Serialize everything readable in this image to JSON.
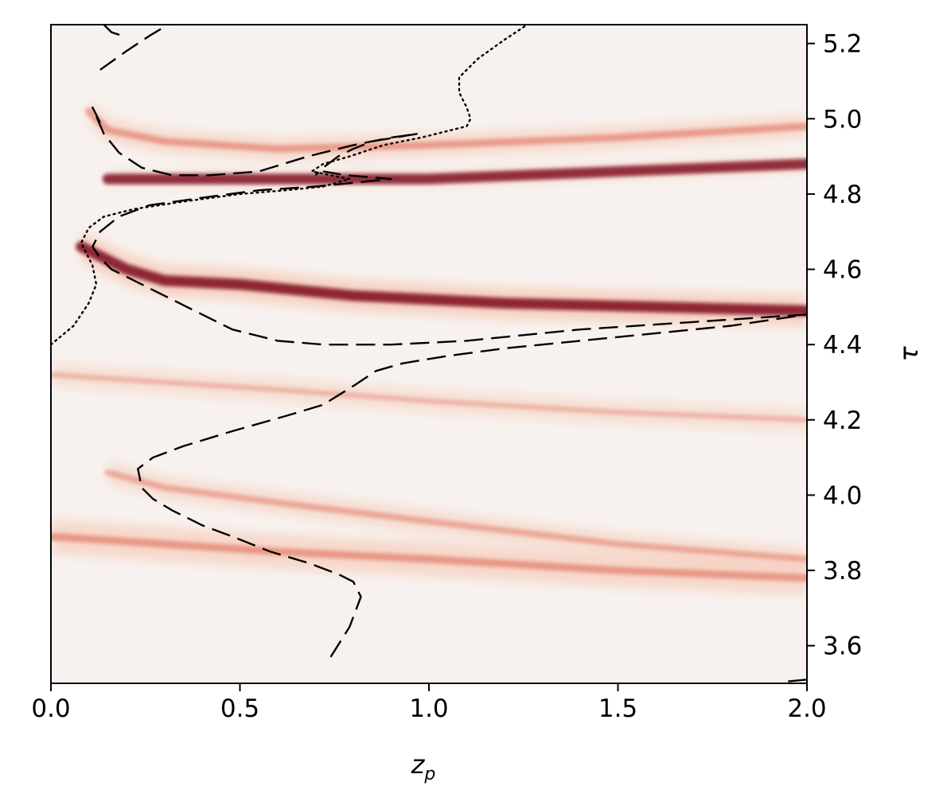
{
  "chart_data": {
    "type": "heatmap",
    "title": "",
    "xlabel": "z",
    "xlabel_subscript": "p",
    "ylabel": "τ",
    "xlim": [
      0.0,
      2.0
    ],
    "ylim": [
      3.5,
      5.25
    ],
    "y_axis_side": "right",
    "grid": false,
    "colormap": "Reds",
    "colors": {
      "background": "#f7f2ef",
      "band_light": "#f6c3ad",
      "band_mid": "#e0725f",
      "band_dark": "#7f0f22",
      "curve": "#000000"
    },
    "x_ticks": [
      {
        "value": 0.0,
        "label": "0.0"
      },
      {
        "value": 0.5,
        "label": "0.5"
      },
      {
        "value": 1.0,
        "label": "1.0"
      },
      {
        "value": 1.5,
        "label": "1.5"
      },
      {
        "value": 2.0,
        "label": "2.0"
      }
    ],
    "y_ticks": [
      {
        "value": 3.6,
        "label": "3.6"
      },
      {
        "value": 3.8,
        "label": "3.8"
      },
      {
        "value": 4.0,
        "label": "4.0"
      },
      {
        "value": 4.2,
        "label": "4.2"
      },
      {
        "value": 4.4,
        "label": "4.4"
      },
      {
        "value": 4.6,
        "label": "4.6"
      },
      {
        "value": 4.8,
        "label": "4.8"
      },
      {
        "value": 5.0,
        "label": "5.0"
      },
      {
        "value": 5.2,
        "label": "5.2"
      }
    ],
    "bands": [
      {
        "name": "band-3.8",
        "points": [
          [
            0.0,
            3.89
          ],
          [
            0.3,
            3.87
          ],
          [
            0.6,
            3.85
          ],
          [
            1.0,
            3.83
          ],
          [
            1.5,
            3.8
          ],
          [
            2.0,
            3.78
          ]
        ],
        "width": 0.045,
        "intensity": 0.55
      },
      {
        "name": "band-4.0",
        "points": [
          [
            0.15,
            4.06
          ],
          [
            0.3,
            4.02
          ],
          [
            0.6,
            3.98
          ],
          [
            1.0,
            3.93
          ],
          [
            1.5,
            3.87
          ],
          [
            2.0,
            3.83
          ]
        ],
        "width": 0.03,
        "intensity": 0.35
      },
      {
        "name": "band-4.55",
        "points": [
          [
            0.08,
            4.66
          ],
          [
            0.2,
            4.6
          ],
          [
            0.3,
            4.57
          ],
          [
            0.5,
            4.56
          ],
          [
            0.8,
            4.53
          ],
          [
            1.2,
            4.51
          ],
          [
            1.6,
            4.5
          ],
          [
            2.0,
            4.49
          ]
        ],
        "width": 0.04,
        "intensity": 0.95
      },
      {
        "name": "band-4.84",
        "points": [
          [
            0.15,
            4.84
          ],
          [
            0.4,
            4.84
          ],
          [
            0.7,
            4.84
          ],
          [
            1.0,
            4.84
          ],
          [
            1.5,
            4.86
          ],
          [
            2.0,
            4.88
          ]
        ],
        "width": 0.015,
        "intensity": 0.9
      },
      {
        "name": "band-4.95",
        "points": [
          [
            0.1,
            5.02
          ],
          [
            0.15,
            4.97
          ],
          [
            0.3,
            4.94
          ],
          [
            0.6,
            4.92
          ],
          [
            1.0,
            4.93
          ],
          [
            1.5,
            4.95
          ],
          [
            2.0,
            4.98
          ]
        ],
        "width": 0.03,
        "intensity": 0.5
      },
      {
        "name": "band-4.3",
        "points": [
          [
            0.0,
            4.32
          ],
          [
            0.3,
            4.3
          ],
          [
            0.6,
            4.28
          ],
          [
            1.0,
            4.25
          ],
          [
            1.5,
            4.22
          ],
          [
            2.0,
            4.2
          ]
        ],
        "width": 0.03,
        "intensity": 0.2
      }
    ],
    "series": [
      {
        "style": "dashed",
        "points": [
          [
            0.74,
            3.57
          ],
          [
            0.79,
            3.65
          ],
          [
            0.82,
            3.73
          ],
          [
            0.8,
            3.77
          ],
          [
            0.76,
            3.79
          ],
          [
            0.68,
            3.82
          ],
          [
            0.58,
            3.85
          ],
          [
            0.48,
            3.89
          ],
          [
            0.4,
            3.92
          ],
          [
            0.32,
            3.96
          ],
          [
            0.27,
            3.99
          ],
          [
            0.24,
            4.02
          ],
          [
            0.23,
            4.07
          ],
          [
            0.27,
            4.1
          ],
          [
            0.35,
            4.13
          ],
          [
            0.48,
            4.17
          ],
          [
            0.62,
            4.21
          ],
          [
            0.72,
            4.24
          ],
          [
            0.8,
            4.29
          ],
          [
            0.86,
            4.33
          ],
          [
            0.93,
            4.35
          ],
          [
            1.05,
            4.37
          ],
          [
            1.2,
            4.39
          ],
          [
            1.5,
            4.42
          ],
          [
            1.8,
            4.45
          ],
          [
            2.0,
            4.48
          ]
        ]
      },
      {
        "style": "dashed",
        "points": [
          [
            2.0,
            4.48
          ],
          [
            1.7,
            4.46
          ],
          [
            1.4,
            4.44
          ],
          [
            1.1,
            4.41
          ],
          [
            0.9,
            4.4
          ],
          [
            0.72,
            4.4
          ],
          [
            0.6,
            4.41
          ],
          [
            0.48,
            4.44
          ],
          [
            0.38,
            4.49
          ],
          [
            0.3,
            4.53
          ],
          [
            0.22,
            4.57
          ],
          [
            0.16,
            4.6
          ],
          [
            0.13,
            4.63
          ],
          [
            0.11,
            4.66
          ],
          [
            0.13,
            4.7
          ],
          [
            0.18,
            4.74
          ],
          [
            0.26,
            4.77
          ],
          [
            0.4,
            4.79
          ],
          [
            0.55,
            4.81
          ],
          [
            0.7,
            4.82
          ],
          [
            0.8,
            4.83
          ],
          [
            0.9,
            4.84
          ],
          [
            0.78,
            4.85
          ],
          [
            0.72,
            4.86
          ]
        ]
      },
      {
        "style": "dashed",
        "points": [
          [
            0.13,
            4.99
          ],
          [
            0.11,
            5.03
          ],
          [
            0.14,
            4.96
          ],
          [
            0.18,
            4.91
          ],
          [
            0.24,
            4.87
          ],
          [
            0.32,
            4.85
          ],
          [
            0.42,
            4.85
          ],
          [
            0.55,
            4.86
          ],
          [
            0.68,
            4.9
          ],
          [
            0.8,
            4.93
          ],
          [
            0.9,
            4.95
          ],
          [
            0.97,
            4.96
          ],
          [
            0.91,
            4.95
          ],
          [
            0.85,
            4.94
          ],
          [
            0.8,
            4.92
          ],
          [
            0.76,
            4.9
          ],
          [
            0.72,
            4.87
          ],
          [
            0.7,
            4.85
          ]
        ]
      },
      {
        "style": "dashed",
        "points": [
          [
            0.13,
            5.13
          ],
          [
            0.2,
            5.18
          ],
          [
            0.26,
            5.22
          ],
          [
            0.31,
            5.25
          ]
        ]
      },
      {
        "style": "dashed",
        "points": [
          [
            0.14,
            5.25
          ],
          [
            0.16,
            5.23
          ],
          [
            0.19,
            5.22
          ],
          [
            0.2,
            5.22
          ]
        ]
      },
      {
        "style": "dashed",
        "points": [
          [
            1.95,
            3.505
          ],
          [
            2.0,
            3.51
          ]
        ]
      },
      {
        "style": "dotted",
        "points": [
          [
            0.0,
            4.4
          ],
          [
            0.06,
            4.45
          ],
          [
            0.1,
            4.51
          ],
          [
            0.12,
            4.56
          ],
          [
            0.11,
            4.61
          ],
          [
            0.09,
            4.65
          ],
          [
            0.08,
            4.67
          ],
          [
            0.1,
            4.71
          ],
          [
            0.14,
            4.74
          ],
          [
            0.22,
            4.76
          ],
          [
            0.35,
            4.78
          ],
          [
            0.5,
            4.8
          ],
          [
            0.62,
            4.81
          ],
          [
            0.72,
            4.82
          ],
          [
            0.79,
            4.84
          ],
          [
            0.74,
            4.85
          ],
          [
            0.69,
            4.86
          ],
          [
            0.72,
            4.88
          ],
          [
            0.79,
            4.9
          ],
          [
            0.88,
            4.93
          ],
          [
            0.98,
            4.95
          ],
          [
            1.1,
            4.98
          ],
          [
            1.11,
            5.0
          ],
          [
            1.1,
            5.03
          ],
          [
            1.08,
            5.07
          ],
          [
            1.08,
            5.11
          ],
          [
            1.13,
            5.16
          ],
          [
            1.2,
            5.21
          ],
          [
            1.26,
            5.25
          ]
        ]
      }
    ]
  }
}
